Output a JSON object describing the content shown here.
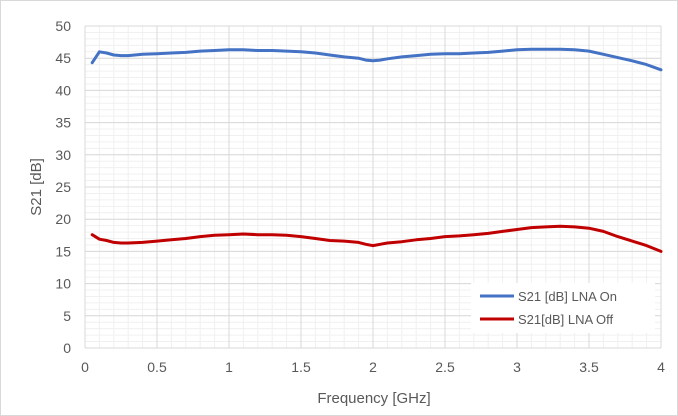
{
  "chart_data": {
    "type": "line",
    "xlabel": "Frequency [GHz]",
    "ylabel": "S21 [dB]",
    "xlim": [
      0,
      4
    ],
    "ylim": [
      0,
      50
    ],
    "x_ticks": [
      "0",
      "0.5",
      "1",
      "1.5",
      "2",
      "2.5",
      "3",
      "3.5",
      "4"
    ],
    "y_ticks": [
      "0",
      "5",
      "10",
      "15",
      "20",
      "25",
      "30",
      "35",
      "40",
      "45",
      "50"
    ],
    "grid": true,
    "minor_grid": true,
    "legend_position": "bottom-right",
    "series": [
      {
        "name": "S21 [dB] LNA On",
        "color": "#4472c4",
        "x": [
          0.05,
          0.1,
          0.15,
          0.2,
          0.25,
          0.3,
          0.4,
          0.5,
          0.6,
          0.7,
          0.8,
          0.9,
          1.0,
          1.1,
          1.2,
          1.3,
          1.4,
          1.5,
          1.6,
          1.7,
          1.8,
          1.9,
          1.95,
          2.0,
          2.05,
          2.1,
          2.2,
          2.3,
          2.4,
          2.5,
          2.6,
          2.7,
          2.8,
          2.9,
          3.0,
          3.1,
          3.2,
          3.3,
          3.4,
          3.5,
          3.6,
          3.7,
          3.8,
          3.9,
          4.0
        ],
        "y": [
          44.3,
          46.0,
          45.8,
          45.5,
          45.4,
          45.4,
          45.6,
          45.7,
          45.8,
          45.9,
          46.1,
          46.2,
          46.3,
          46.3,
          46.2,
          46.2,
          46.1,
          46.0,
          45.8,
          45.5,
          45.2,
          45.0,
          44.7,
          44.6,
          44.7,
          44.9,
          45.2,
          45.4,
          45.6,
          45.7,
          45.7,
          45.8,
          45.9,
          46.1,
          46.3,
          46.4,
          46.4,
          46.4,
          46.3,
          46.1,
          45.6,
          45.1,
          44.6,
          44.0,
          43.2
        ]
      },
      {
        "name": "S21[dB] LNA Off",
        "color": "#c00000",
        "x": [
          0.05,
          0.1,
          0.15,
          0.2,
          0.25,
          0.3,
          0.4,
          0.5,
          0.6,
          0.7,
          0.8,
          0.9,
          1.0,
          1.1,
          1.2,
          1.3,
          1.4,
          1.5,
          1.6,
          1.7,
          1.8,
          1.9,
          1.95,
          2.0,
          2.05,
          2.1,
          2.2,
          2.3,
          2.4,
          2.5,
          2.6,
          2.7,
          2.8,
          2.9,
          3.0,
          3.1,
          3.2,
          3.3,
          3.4,
          3.5,
          3.6,
          3.7,
          3.8,
          3.9,
          4.0
        ],
        "y": [
          17.6,
          16.9,
          16.7,
          16.4,
          16.3,
          16.3,
          16.4,
          16.6,
          16.8,
          17.0,
          17.3,
          17.5,
          17.6,
          17.7,
          17.6,
          17.6,
          17.5,
          17.3,
          17.0,
          16.7,
          16.6,
          16.4,
          16.1,
          15.9,
          16.1,
          16.3,
          16.5,
          16.8,
          17.0,
          17.3,
          17.4,
          17.6,
          17.8,
          18.1,
          18.4,
          18.7,
          18.8,
          18.9,
          18.8,
          18.6,
          18.1,
          17.3,
          16.6,
          15.9,
          15.0
        ]
      }
    ]
  }
}
